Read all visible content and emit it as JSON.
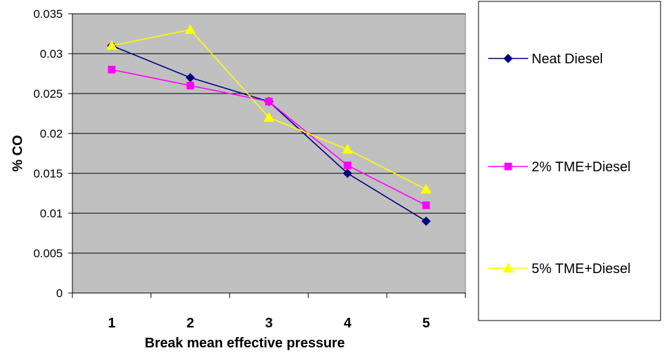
{
  "chart_data": {
    "type": "line",
    "title": "",
    "xlabel": "Break mean effective pressure",
    "ylabel": "% CO",
    "categories": [
      "1",
      "2",
      "3",
      "4",
      "5"
    ],
    "ylim": [
      0,
      0.035
    ],
    "yticks": [
      "0",
      "0.005",
      "0.01",
      "0.015",
      "0.02",
      "0.025",
      "0.03",
      "0.035"
    ],
    "grid": "horizontal",
    "plot_background": "#c0c0c0",
    "legend_position": "right",
    "series": [
      {
        "name": "Neat Diesel",
        "values": [
          0.031,
          0.027,
          0.024,
          0.015,
          0.009
        ],
        "color": "#000080",
        "marker": "diamond"
      },
      {
        "name": "2% TME+Diesel",
        "values": [
          0.028,
          0.026,
          0.024,
          0.016,
          0.011
        ],
        "color": "#ff00ff",
        "marker": "square"
      },
      {
        "name": "5% TME+Diesel",
        "values": [
          0.031,
          0.033,
          0.022,
          0.018,
          0.013
        ],
        "color": "#ffff00",
        "marker": "triangle"
      }
    ]
  }
}
